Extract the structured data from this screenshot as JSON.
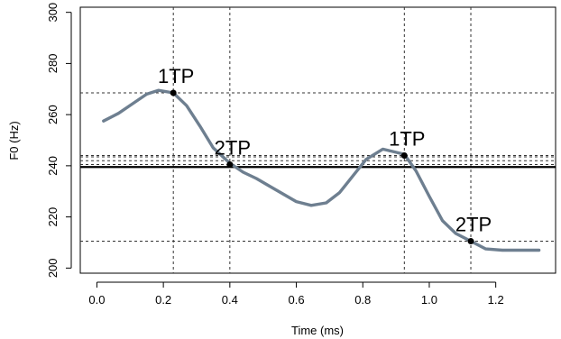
{
  "chart_data": {
    "type": "line",
    "title": "",
    "xlabel": "Time (ms)",
    "ylabel": "F0 (Hz)",
    "xlim": [
      -0.05,
      1.38
    ],
    "ylim": [
      198,
      302
    ],
    "xticks": [
      0.0,
      0.2,
      0.4,
      0.6,
      0.8,
      1.0,
      1.2
    ],
    "xtick_labels": [
      "0.0",
      "0.2",
      "0.4",
      "0.6",
      "0.8",
      "1.0",
      "1.2"
    ],
    "yticks": [
      200,
      220,
      240,
      260,
      280,
      300
    ],
    "ytick_labels": [
      "200",
      "220",
      "240",
      "260",
      "280",
      "300"
    ],
    "grid": false,
    "line_color": "#6e7f90",
    "series": [
      {
        "x": [
          0.02,
          0.065,
          0.11,
          0.15,
          0.185,
          0.23,
          0.27,
          0.31,
          0.35,
          0.4,
          0.44,
          0.48,
          0.52,
          0.56,
          0.6,
          0.645,
          0.69,
          0.73,
          0.77,
          0.81,
          0.86,
          0.925,
          0.96,
          1.0,
          1.04,
          1.08,
          1.125,
          1.17,
          1.22,
          1.28,
          1.33
        ],
        "y": [
          257.5,
          260.5,
          264.5,
          268.0,
          269.5,
          268.5,
          263.5,
          255.5,
          247.0,
          241.0,
          237.5,
          235.0,
          232.0,
          229.0,
          226.0,
          224.5,
          225.5,
          229.5,
          236.0,
          242.5,
          246.5,
          244.5,
          238.0,
          228.0,
          218.5,
          213.5,
          210.5,
          207.5,
          207.0,
          207.0,
          207.0
        ]
      }
    ],
    "reference_line": {
      "y": 239.5
    },
    "turning_points": [
      {
        "label": "1TP",
        "x": 0.23,
        "y": 268.5
      },
      {
        "label": "2TP",
        "x": 0.4,
        "y": 240.5
      },
      {
        "label": "1TP",
        "x": 0.925,
        "y": 244.0
      },
      {
        "label": "2TP",
        "x": 1.125,
        "y": 210.5
      }
    ],
    "extra_dashed_hlines": [
      242.0,
      243.5
    ]
  }
}
